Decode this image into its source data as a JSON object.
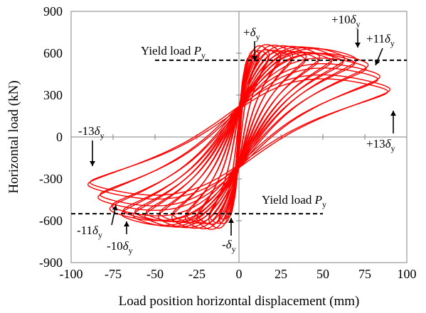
{
  "chart_data": {
    "type": "line",
    "xlabel": "Load position horizontal displacement (mm)",
    "ylabel": "Horizontal load (kN)",
    "xlim": [
      -100,
      100
    ],
    "ylim": [
      -900,
      900
    ],
    "xticks": [
      -100,
      -75,
      -50,
      -25,
      0,
      25,
      50,
      75,
      100
    ],
    "yticks": [
      -900,
      -600,
      -300,
      0,
      300,
      600,
      900
    ],
    "grid": false,
    "series": [
      {
        "color": "#ff0000",
        "cycles": [
          {
            "d": 2.5,
            "p": 380
          },
          {
            "d": 5,
            "p": 520
          },
          {
            "d": 8,
            "p": 610
          },
          {
            "d": 12,
            "p": 640
          },
          {
            "d": 18,
            "p": 640
          },
          {
            "d": 25,
            "p": 635
          },
          {
            "d": 32,
            "p": 630
          },
          {
            "d": 40,
            "p": 625
          },
          {
            "d": 48,
            "p": 620
          },
          {
            "d": 56,
            "p": 615
          },
          {
            "d": 63,
            "p": 610
          },
          {
            "d": 70,
            "p": 600
          },
          {
            "d": 77,
            "p": 560
          },
          {
            "d": 84,
            "p": 470
          },
          {
            "d": 90,
            "p": 370
          }
        ]
      }
    ],
    "yield_load": 550,
    "annotations": {
      "yield_top": {
        "pre": "Yield load ",
        "it": "P",
        "sub": "y"
      },
      "yield_bottom": {
        "pre": "Yield load ",
        "it": "P",
        "sub": "y"
      },
      "p1": {
        "pre": "+",
        "it": "δ",
        "sub": "y"
      },
      "p10": {
        "pre": "+10",
        "it": "δ",
        "sub": "y"
      },
      "p11": {
        "pre": "+11",
        "it": "δ",
        "sub": "y"
      },
      "p13": {
        "pre": "+13",
        "it": "δ",
        "sub": "y"
      },
      "m1": {
        "pre": "-",
        "it": "δ",
        "sub": "y"
      },
      "m10": {
        "pre": "-10",
        "it": "δ",
        "sub": "y"
      },
      "m11": {
        "pre": "-11",
        "it": "δ",
        "sub": "y"
      },
      "m13": {
        "pre": "-13",
        "it": "δ",
        "sub": "y"
      }
    }
  }
}
